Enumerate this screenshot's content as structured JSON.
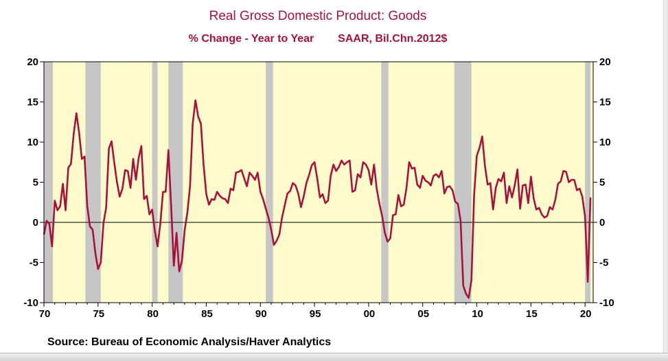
{
  "chart_data": {
    "type": "line",
    "title": "Real Gross Domestic Product: Goods",
    "subtitle_left": "% Change - Year to Year",
    "subtitle_right": "SAAR, Bil.Chn.2012$",
    "source": "Source:  Bureau of Economic Analysis/Haver Analytics",
    "xlim": [
      1970,
      2020.75
    ],
    "ylim": [
      -10,
      20
    ],
    "x_ticks": [
      1970,
      1975,
      1980,
      1985,
      1990,
      1995,
      2000,
      2005,
      2010,
      2015,
      2020
    ],
    "x_tick_labels": [
      "70",
      "75",
      "80",
      "85",
      "90",
      "95",
      "00",
      "05",
      "10",
      "15",
      "20"
    ],
    "y_ticks": [
      -10,
      -5,
      0,
      5,
      10,
      15,
      20
    ],
    "y_tick_labels": [
      "-10",
      "-5",
      "0",
      "5",
      "10",
      "15",
      "20"
    ],
    "grid": false,
    "zero_line": true,
    "recessions": [
      [
        1970.0,
        1970.83
      ],
      [
        1973.83,
        1975.25
      ],
      [
        1980.0,
        1980.5
      ],
      [
        1981.5,
        1982.83
      ],
      [
        1990.5,
        1991.17
      ],
      [
        2001.17,
        2001.83
      ],
      [
        2007.92,
        2009.5
      ],
      [
        2020.0,
        2020.5
      ]
    ],
    "colors": {
      "line": "#a8123a",
      "title": "#a8123a",
      "background": "#fdfbcc",
      "recession": "#c6c6c6"
    },
    "series": [
      {
        "name": "",
        "x": [
          1970.0,
          1970.25,
          1970.5,
          1970.75,
          1971.0,
          1971.25,
          1971.5,
          1971.75,
          1972.0,
          1972.25,
          1972.5,
          1972.75,
          1973.0,
          1973.25,
          1973.5,
          1973.75,
          1974.0,
          1974.25,
          1974.5,
          1974.75,
          1975.0,
          1975.25,
          1975.5,
          1975.75,
          1976.0,
          1976.25,
          1976.5,
          1976.75,
          1977.0,
          1977.25,
          1977.5,
          1977.75,
          1978.0,
          1978.25,
          1978.5,
          1978.75,
          1979.0,
          1979.25,
          1979.5,
          1979.75,
          1980.0,
          1980.25,
          1980.5,
          1980.75,
          1981.0,
          1981.25,
          1981.5,
          1981.75,
          1982.0,
          1982.25,
          1982.5,
          1982.75,
          1983.0,
          1983.25,
          1983.5,
          1983.75,
          1984.0,
          1984.25,
          1984.5,
          1984.75,
          1985.0,
          1985.25,
          1985.5,
          1985.75,
          1986.0,
          1986.25,
          1986.5,
          1986.75,
          1987.0,
          1987.25,
          1987.5,
          1987.75,
          1988.0,
          1988.25,
          1988.5,
          1988.75,
          1989.0,
          1989.25,
          1989.5,
          1989.75,
          1990.0,
          1990.25,
          1990.5,
          1990.75,
          1991.0,
          1991.25,
          1991.5,
          1991.75,
          1992.0,
          1992.25,
          1992.5,
          1992.75,
          1993.0,
          1993.25,
          1993.5,
          1993.75,
          1994.0,
          1994.25,
          1994.5,
          1994.75,
          1995.0,
          1995.25,
          1995.5,
          1995.75,
          1996.0,
          1996.25,
          1996.5,
          1996.75,
          1997.0,
          1997.25,
          1997.5,
          1997.75,
          1998.0,
          1998.25,
          1998.5,
          1998.75,
          1999.0,
          1999.25,
          1999.5,
          1999.75,
          2000.0,
          2000.25,
          2000.5,
          2000.75,
          2001.0,
          2001.25,
          2001.5,
          2001.75,
          2002.0,
          2002.25,
          2002.5,
          2002.75,
          2003.0,
          2003.25,
          2003.5,
          2003.75,
          2004.0,
          2004.25,
          2004.5,
          2004.75,
          2005.0,
          2005.25,
          2005.5,
          2005.75,
          2006.0,
          2006.25,
          2006.5,
          2006.75,
          2007.0,
          2007.25,
          2007.5,
          2007.75,
          2008.0,
          2008.25,
          2008.5,
          2008.75,
          2009.0,
          2009.25,
          2009.5,
          2009.75,
          2010.0,
          2010.25,
          2010.5,
          2010.75,
          2011.0,
          2011.25,
          2011.5,
          2011.75,
          2012.0,
          2012.25,
          2012.5,
          2012.75,
          2013.0,
          2013.25,
          2013.5,
          2013.75,
          2014.0,
          2014.25,
          2014.5,
          2014.75,
          2015.0,
          2015.25,
          2015.5,
          2015.75,
          2016.0,
          2016.25,
          2016.5,
          2016.75,
          2017.0,
          2017.25,
          2017.5,
          2017.75,
          2018.0,
          2018.25,
          2018.5,
          2018.75,
          2019.0,
          2019.25,
          2019.5,
          2019.75,
          2020.0,
          2020.25,
          2020.5
        ],
        "values": [
          -1.5,
          0.2,
          -0.2,
          -3.0,
          2.7,
          1.5,
          2.0,
          4.8,
          1.5,
          6.8,
          7.3,
          11.0,
          13.6,
          11.2,
          7.9,
          8.2,
          2.0,
          -0.5,
          -0.9,
          -3.8,
          -5.8,
          -5.0,
          -0.1,
          1.8,
          9.2,
          10.1,
          7.4,
          5.0,
          3.2,
          4.2,
          6.5,
          6.4,
          4.3,
          7.9,
          5.3,
          8.0,
          9.5,
          2.9,
          3.3,
          1.0,
          1.6,
          -1.1,
          -3.0,
          -0.2,
          3.8,
          3.8,
          9.0,
          2.2,
          -5.4,
          -1.3,
          -6.1,
          -4.8,
          -1.0,
          1.2,
          4.5,
          12.3,
          15.2,
          13.2,
          12.3,
          7.2,
          3.5,
          2.2,
          2.9,
          2.8,
          3.8,
          3.3,
          3.0,
          2.9,
          2.4,
          4.2,
          4.0,
          6.2,
          6.3,
          6.5,
          5.5,
          4.5,
          6.2,
          5.8,
          5.3,
          6.2,
          3.8,
          2.9,
          1.7,
          0.6,
          -0.9,
          -2.8,
          -2.3,
          -1.5,
          0.6,
          2.1,
          3.6,
          3.9,
          4.9,
          4.6,
          3.6,
          1.9,
          3.2,
          4.9,
          5.9,
          7.1,
          7.5,
          5.5,
          3.1,
          3.5,
          2.4,
          2.7,
          5.8,
          7.2,
          6.4,
          6.9,
          7.7,
          7.2,
          7.5,
          7.7,
          3.8,
          4.0,
          6.0,
          5.6,
          7.5,
          7.2,
          6.5,
          4.7,
          7.2,
          4.2,
          2.3,
          0.8,
          -1.3,
          -2.4,
          -2.0,
          0.9,
          1.0,
          3.4,
          2.0,
          2.2,
          4.3,
          7.5,
          6.7,
          6.8,
          4.7,
          4.3,
          5.8,
          5.2,
          5.0,
          4.6,
          5.8,
          6.0,
          5.6,
          6.4,
          3.6,
          4.4,
          4.5,
          4.0,
          2.6,
          2.3,
          0.2,
          -7.9,
          -8.9,
          -9.4,
          -7.2,
          3.4,
          8.3,
          9.3,
          10.7,
          7.0,
          4.7,
          4.9,
          1.6,
          4.3,
          5.4,
          5.1,
          6.2,
          2.4,
          4.5,
          3.1,
          4.6,
          6.6,
          1.7,
          4.6,
          4.7,
          2.4,
          5.7,
          3.0,
          1.6,
          1.8,
          1.0,
          0.6,
          0.8,
          1.9,
          1.6,
          2.8,
          4.8,
          5.1,
          6.4,
          6.3,
          5.0,
          5.3,
          5.3,
          4.0,
          4.2,
          3.2,
          0.7,
          -7.4,
          3.1
        ]
      }
    ]
  }
}
